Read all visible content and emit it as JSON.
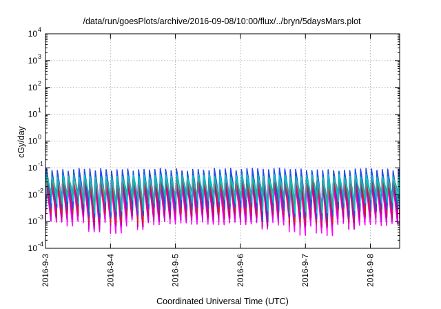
{
  "chart_data": {
    "type": "line",
    "title": "/data/run/goesPlots/archive/2016-09-08/10:00/flux/../bryn/5daysMars.plot",
    "xlabel": "Coordinated Universal Time (UTC)",
    "ylabel": "cGy/day",
    "y_scale": "log",
    "ylim": [
      0.0001,
      10000
    ],
    "y_ticks": [
      {
        "base": "10",
        "exp": "-4"
      },
      {
        "base": "10",
        "exp": "-3"
      },
      {
        "base": "10",
        "exp": "-2"
      },
      {
        "base": "10",
        "exp": "-1"
      },
      {
        "base": "10",
        "exp": "0"
      },
      {
        "base": "10",
        "exp": "1"
      },
      {
        "base": "10",
        "exp": "2"
      },
      {
        "base": "10",
        "exp": "3"
      },
      {
        "base": "10",
        "exp": "4"
      }
    ],
    "x_ticks": [
      "2016-9-3",
      "2016-9-4",
      "2016-9-5",
      "2016-9-6",
      "2016-9-7",
      "2016-9-8"
    ],
    "xlim_days": [
      0,
      5.45
    ],
    "grid": true,
    "pattern": {
      "cycles_per_day": 12,
      "notes": "sawtooth dose-rate series: each cycle rises sharply to a peak and decays over about two hours"
    },
    "series": [
      {
        "color": "#ff00ff",
        "peak": 0.022,
        "trough": 0.0009
      },
      {
        "color": "#cc00cc",
        "peak": 0.028,
        "trough": 0.0013
      },
      {
        "color": "#c0007a",
        "peak": 0.032,
        "trough": 0.0018
      },
      {
        "color": "#dd1f1f",
        "peak": 0.04,
        "trough": 0.0025
      },
      {
        "color": "#2244ff",
        "peak": 0.085,
        "trough": 0.004
      },
      {
        "color": "#2a4fd6",
        "peak": 0.07,
        "trough": 0.003
      },
      {
        "color": "#00c8c8",
        "peak": 0.05,
        "trough": 0.006
      },
      {
        "color": "#20b2aa",
        "peak": 0.04,
        "trough": 0.008
      }
    ]
  }
}
